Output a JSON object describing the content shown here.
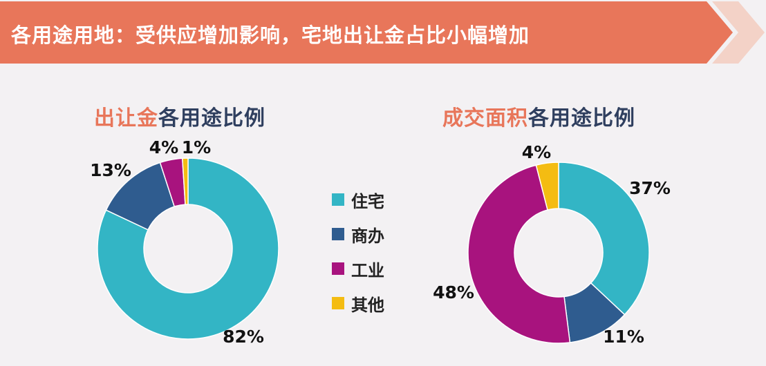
{
  "header": {
    "title": "各用途用地：受供应增加影响，宅地出让金占比小幅增加"
  },
  "colors": {
    "banner": "#e8765a",
    "title_accent": "#e8765a",
    "title_dark": "#2f3f5f"
  },
  "legend": {
    "items": [
      {
        "label": "住宅",
        "color": "#33b5c5"
      },
      {
        "label": "商办",
        "color": "#2f5c8f"
      },
      {
        "label": "工业",
        "color": "#a8137e"
      },
      {
        "label": "其他",
        "color": "#f4bc12"
      }
    ]
  },
  "chart_data": [
    {
      "type": "pie",
      "style": "donut",
      "title_accent": "出让金",
      "title_rest": "各用途比例",
      "categories": [
        "住宅",
        "商办",
        "工业",
        "其他"
      ],
      "values": [
        82,
        13,
        4,
        1
      ],
      "labels": [
        "82%",
        "13%",
        "4%",
        "1%"
      ],
      "colors": [
        "#33b5c5",
        "#2f5c8f",
        "#a8137e",
        "#f4bc12"
      ]
    },
    {
      "type": "pie",
      "style": "donut",
      "title_accent": "成交面积",
      "title_rest": "各用途比例",
      "categories": [
        "住宅",
        "商办",
        "工业",
        "其他"
      ],
      "values": [
        37,
        11,
        48,
        4
      ],
      "labels": [
        "37%",
        "11%",
        "48%",
        "4%"
      ],
      "colors": [
        "#33b5c5",
        "#2f5c8f",
        "#a8137e",
        "#f4bc12"
      ]
    }
  ]
}
